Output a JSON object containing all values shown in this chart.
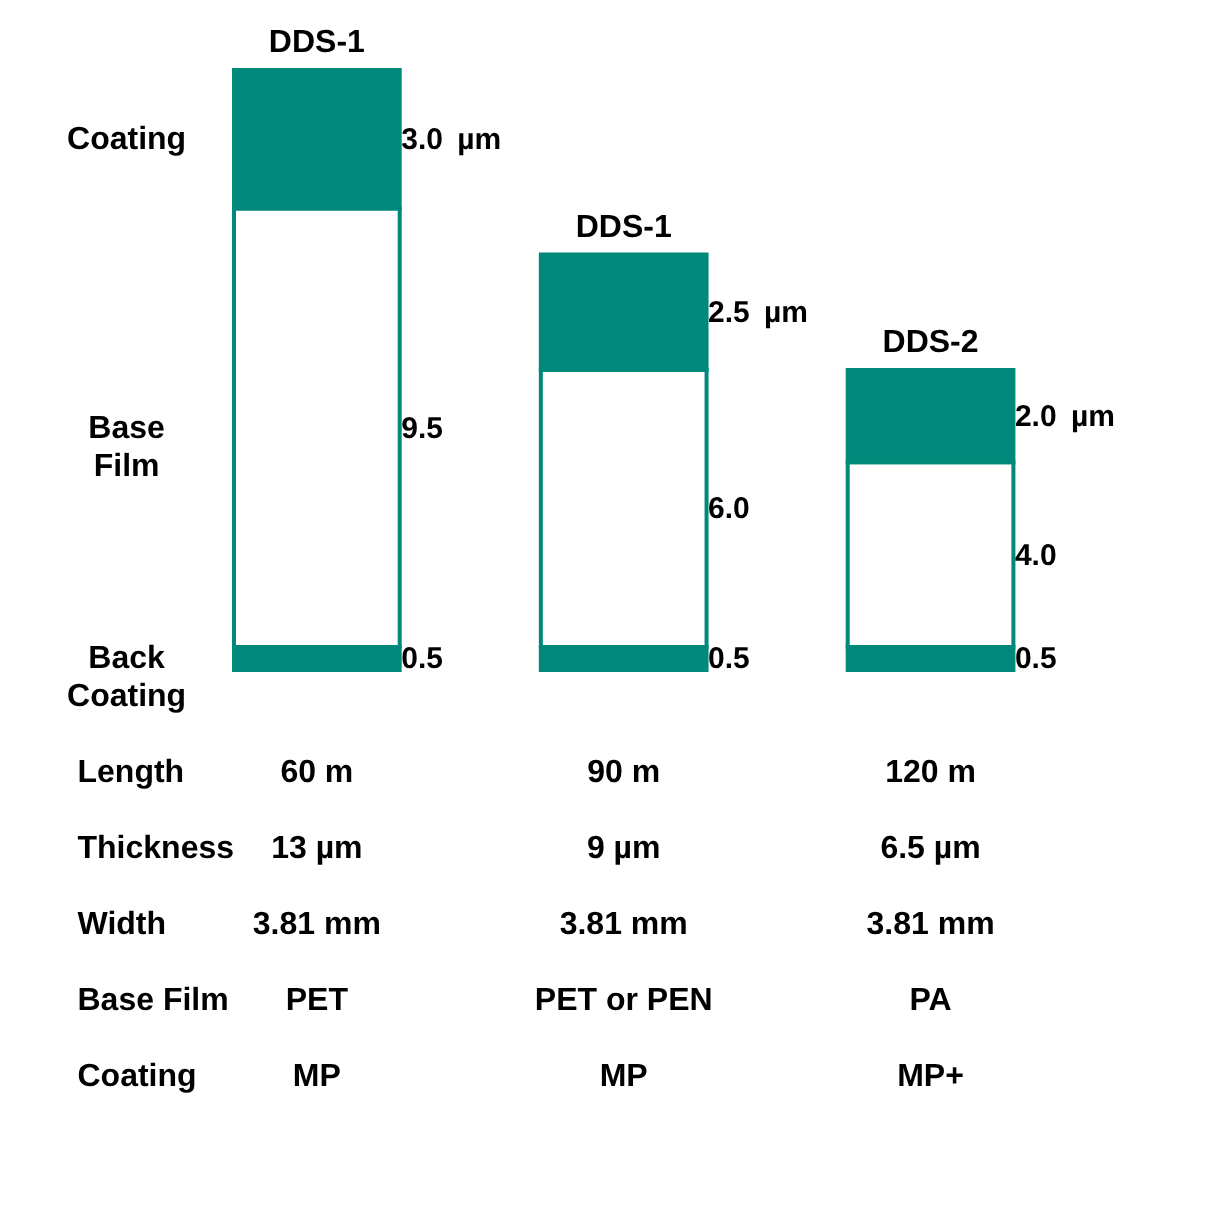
{
  "chart_data": {
    "type": "bar",
    "stacked": true,
    "categories": [
      "DDS-1",
      "DDS-1",
      "DDS-2"
    ],
    "series": [
      {
        "name": "Back Coating",
        "color": "#00897a",
        "values": [
          0.5,
          0.5,
          0.5
        ],
        "value_labels": [
          "0.5",
          "0.5",
          "0.5"
        ]
      },
      {
        "name": "Base Film",
        "color": "#ffffff",
        "values": [
          9.5,
          6.0,
          4.0
        ],
        "value_labels": [
          "9.5",
          "6.0",
          "4.0"
        ]
      },
      {
        "name": "Coating",
        "color": "#00897a",
        "values": [
          3.0,
          2.5,
          2.0
        ],
        "value_labels": [
          "3.0",
          "2.5",
          "2.0"
        ]
      }
    ],
    "annotations": [
      "Length",
      "60 m",
      "90 m",
      "120 m",
      "Thickness",
      "13 µm",
      "9 µm",
      "6.5 µm",
      "Width",
      "3.81 mm",
      "3.81 mm",
      "3.81 mm",
      "Base Film",
      "PET",
      "PET or PEN",
      "PA",
      "Coating",
      "MP",
      "MP",
      "MP+",
      "µm",
      "µm",
      "µm"
    ]
  }
}
